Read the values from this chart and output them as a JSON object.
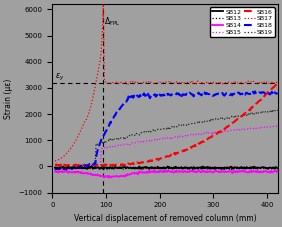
{
  "title": "",
  "xlabel": "Vertical displacement of removed column (mm)",
  "ylabel": "Strain (με)",
  "xlim": [
    0,
    420
  ],
  "ylim": [
    -1000,
    6200
  ],
  "yticks": [
    -1000,
    0,
    1000,
    2000,
    3000,
    4000,
    5000,
    6000
  ],
  "xticks": [
    0,
    100,
    200,
    300,
    400
  ],
  "delta_fpl_x": 95,
  "epsilon_y": 3175,
  "background_color": "#a0a0a0",
  "plot_bg": "#a0a0a0"
}
